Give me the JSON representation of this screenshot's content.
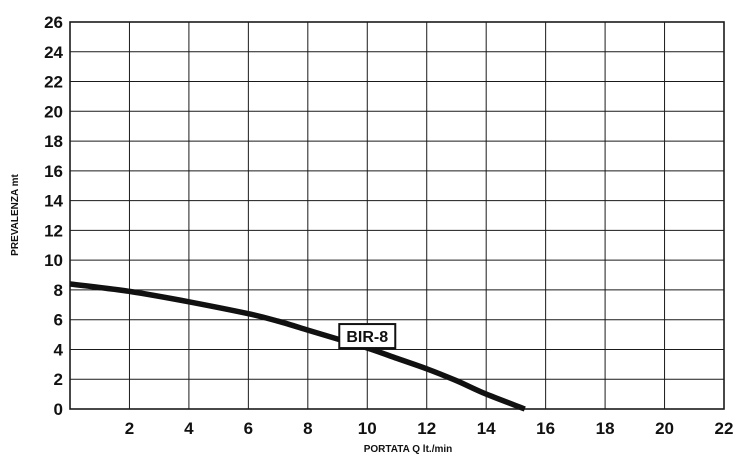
{
  "chart_data": {
    "type": "line",
    "title": "",
    "xlabel": "PORTATA Q   lt./min",
    "ylabel": "PREVALENZA  mt",
    "xlim": [
      0,
      22
    ],
    "ylim": [
      0,
      26
    ],
    "grid": true,
    "x_ticks": [
      0,
      2,
      4,
      6,
      8,
      10,
      12,
      14,
      16,
      18,
      20,
      22
    ],
    "x_tick_labels": [
      "",
      "2",
      "4",
      "6",
      "8",
      "10",
      "12",
      "14",
      "16",
      "18",
      "20",
      "22"
    ],
    "y_ticks": [
      0,
      2,
      4,
      6,
      8,
      10,
      12,
      14,
      16,
      18,
      20,
      22,
      24,
      26
    ],
    "y_tick_labels": [
      "0",
      "2",
      "4",
      "6",
      "8",
      "10",
      "12",
      "14",
      "16",
      "18",
      "20",
      "22",
      "24",
      "26"
    ],
    "series": [
      {
        "name": "BIR-8",
        "color": "#111111",
        "x": [
          0,
          2,
          4,
          6,
          7,
          8,
          9,
          10,
          11,
          12,
          13,
          14,
          15.3
        ],
        "y": [
          8.4,
          7.9,
          7.2,
          6.4,
          5.9,
          5.3,
          4.7,
          4.1,
          3.4,
          2.7,
          1.9,
          1.0,
          0.0
        ],
        "label_at": {
          "x": 10.0,
          "y": 4.9
        }
      }
    ],
    "colors": {
      "grid": "#1a1a1a",
      "line": "#111111",
      "text": "#111111",
      "background": "#ffffff"
    }
  }
}
